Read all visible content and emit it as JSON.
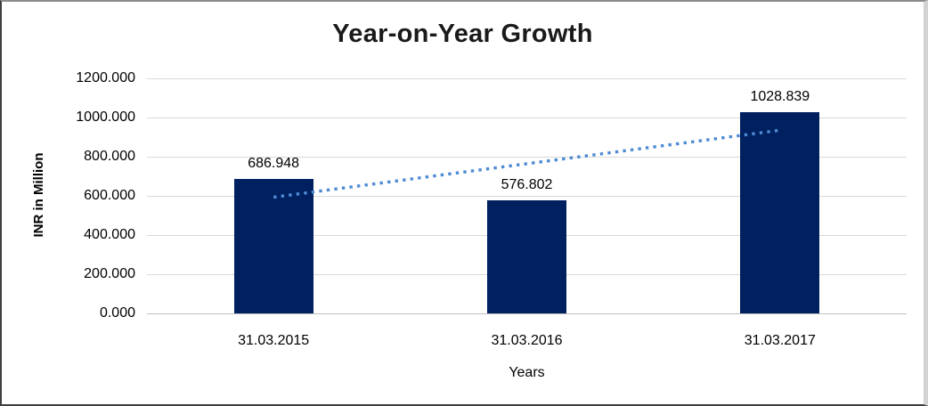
{
  "chart_data": {
    "type": "bar",
    "title": "Year-on-Year Growth",
    "xlabel": "Years",
    "ylabel": "INR in Million",
    "categories": [
      "31.03.2015",
      "31.03.2016",
      "31.03.2017"
    ],
    "values": [
      686.948,
      576.802,
      1028.839
    ],
    "value_labels": [
      "686.948",
      "576.802",
      "1028.839"
    ],
    "ylim": [
      0,
      1200
    ],
    "yticks": [
      0,
      200,
      400,
      600,
      800,
      1000,
      1200
    ],
    "ytick_labels": [
      "0.000",
      "200.000",
      "400.000",
      "600.000",
      "800.000",
      "1000.000",
      "1200.000"
    ],
    "grid": true,
    "legend": "none",
    "bar_color": "#002060",
    "gridline_color": "#d9d9d9",
    "baseline_color": "#bfbfbf",
    "trendline": {
      "type": "linear",
      "style": "dotted",
      "color": "#4f8bd3",
      "y_start": 593.2,
      "y_end": 935.1
    }
  }
}
